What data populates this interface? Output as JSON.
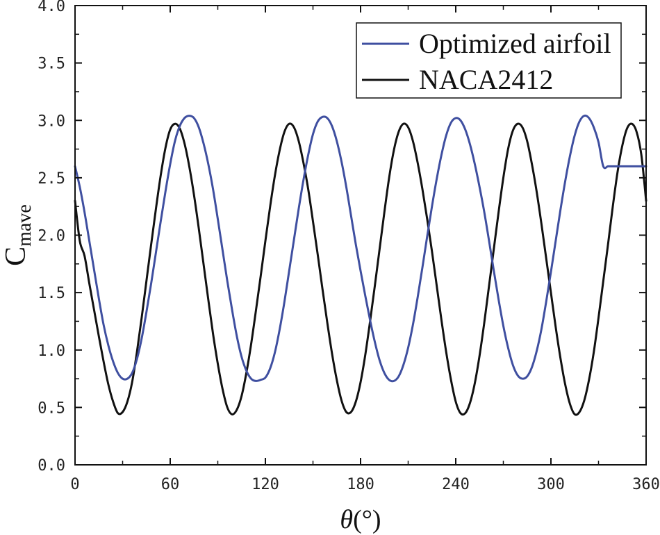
{
  "chart_data": {
    "type": "line",
    "title": "",
    "xlabel_symbol": "θ",
    "xlabel_unit": "(°)",
    "ylabel_main": "C",
    "ylabel_sub": "mave",
    "xlim": [
      0,
      360
    ],
    "ylim": [
      0.0,
      4.0
    ],
    "xticks": [
      0,
      60,
      120,
      180,
      240,
      300,
      360
    ],
    "xtick_labels": [
      "0",
      "60",
      "120",
      "180",
      "240",
      "300",
      "360"
    ],
    "yticks": [
      0.0,
      0.5,
      1.0,
      1.5,
      2.0,
      2.5,
      3.0,
      3.5,
      4.0
    ],
    "ytick_labels": [
      "0.0",
      "0.5",
      "1.0",
      "1.5",
      "2.0",
      "2.5",
      "3.0",
      "3.5",
      "4.0"
    ],
    "grid": false,
    "legend_position": "top-right",
    "series": [
      {
        "name": "Optimized airfoil",
        "color": "#3f4fa0",
        "x": [
          0,
          3,
          6,
          9,
          12,
          15,
          18,
          21,
          24,
          27,
          30,
          33,
          36,
          39,
          42,
          45,
          48,
          51,
          54,
          57,
          60,
          63,
          66,
          69,
          72,
          75,
          78,
          81,
          84,
          87,
          90,
          93,
          96,
          99,
          102,
          105,
          108,
          111,
          114,
          117,
          120,
          123,
          126,
          129,
          132,
          135,
          138,
          141,
          144,
          147,
          150,
          153,
          156,
          159,
          162,
          165,
          168,
          171,
          174,
          177,
          180,
          183,
          186,
          189,
          192,
          195,
          198,
          201,
          204,
          207,
          210,
          213,
          216,
          219,
          222,
          225,
          228,
          231,
          234,
          237,
          240,
          243,
          246,
          249,
          252,
          255,
          258,
          261,
          264,
          267,
          270,
          273,
          276,
          279,
          282,
          285,
          288,
          291,
          294,
          297,
          300,
          303,
          306,
          309,
          312,
          315,
          318,
          321,
          324,
          327,
          330,
          333,
          336,
          339,
          342,
          345,
          348,
          351,
          354,
          357,
          360
        ],
        "values": [
          2.6,
          2.42,
          2.2,
          1.95,
          1.7,
          1.45,
          1.22,
          1.04,
          0.9,
          0.8,
          0.75,
          0.75,
          0.8,
          0.92,
          1.1,
          1.33,
          1.58,
          1.85,
          2.12,
          2.38,
          2.62,
          2.82,
          2.95,
          3.02,
          3.04,
          3.02,
          2.94,
          2.8,
          2.62,
          2.4,
          2.14,
          1.87,
          1.6,
          1.35,
          1.12,
          0.94,
          0.82,
          0.75,
          0.73,
          0.74,
          0.76,
          0.84,
          0.98,
          1.18,
          1.42,
          1.69,
          1.96,
          2.23,
          2.48,
          2.7,
          2.88,
          2.99,
          3.03,
          3.02,
          2.95,
          2.82,
          2.64,
          2.42,
          2.17,
          1.92,
          1.69,
          1.47,
          1.26,
          1.07,
          0.91,
          0.8,
          0.74,
          0.73,
          0.77,
          0.87,
          1.02,
          1.22,
          1.46,
          1.72,
          1.99,
          2.25,
          2.49,
          2.7,
          2.87,
          2.98,
          3.02,
          3.0,
          2.92,
          2.79,
          2.62,
          2.42,
          2.2,
          1.95,
          1.69,
          1.44,
          1.21,
          1.02,
          0.87,
          0.78,
          0.75,
          0.77,
          0.85,
          0.99,
          1.18,
          1.42,
          1.68,
          1.95,
          2.22,
          2.47,
          2.69,
          2.87,
          2.99,
          3.04,
          3.02,
          2.94,
          2.81,
          2.6,
          2.6,
          2.6,
          2.6,
          2.6,
          2.6,
          2.6,
          2.6,
          2.6,
          2.6
        ]
      },
      {
        "name": "NACA2412",
        "color": "#111111",
        "x": [
          0,
          3,
          6,
          9,
          12,
          15,
          18,
          21,
          24,
          27,
          30,
          33,
          36,
          39,
          42,
          45,
          48,
          51,
          54,
          57,
          60,
          63,
          66,
          69,
          72,
          75,
          78,
          81,
          84,
          87,
          90,
          93,
          96,
          99,
          102,
          105,
          108,
          111,
          114,
          117,
          120,
          123,
          126,
          129,
          132,
          135,
          138,
          141,
          144,
          147,
          150,
          153,
          156,
          159,
          162,
          165,
          168,
          171,
          174,
          177,
          180,
          183,
          186,
          189,
          192,
          195,
          198,
          201,
          204,
          207,
          210,
          213,
          216,
          219,
          222,
          225,
          228,
          231,
          234,
          237,
          240,
          243,
          246,
          249,
          252,
          255,
          258,
          261,
          264,
          267,
          270,
          273,
          276,
          279,
          282,
          285,
          288,
          291,
          294,
          297,
          300,
          303,
          306,
          309,
          312,
          315,
          318,
          321,
          324,
          327,
          330,
          333,
          336,
          339,
          342,
          345,
          348,
          351,
          354,
          357,
          360
        ],
        "values": [
          2.3,
          1.95,
          1.82,
          1.58,
          1.35,
          1.12,
          0.9,
          0.7,
          0.55,
          0.45,
          0.46,
          0.55,
          0.72,
          0.98,
          1.28,
          1.6,
          1.92,
          2.23,
          2.52,
          2.76,
          2.92,
          2.97,
          2.93,
          2.8,
          2.6,
          2.35,
          2.06,
          1.75,
          1.44,
          1.14,
          0.88,
          0.66,
          0.5,
          0.44,
          0.48,
          0.6,
          0.8,
          1.05,
          1.34,
          1.64,
          1.95,
          2.25,
          2.52,
          2.74,
          2.9,
          2.97,
          2.94,
          2.82,
          2.63,
          2.4,
          2.12,
          1.83,
          1.53,
          1.24,
          0.97,
          0.74,
          0.56,
          0.46,
          0.46,
          0.55,
          0.72,
          0.96,
          1.25,
          1.56,
          1.88,
          2.2,
          2.5,
          2.74,
          2.9,
          2.97,
          2.94,
          2.82,
          2.63,
          2.4,
          2.14,
          1.86,
          1.56,
          1.26,
          0.98,
          0.74,
          0.55,
          0.45,
          0.45,
          0.54,
          0.71,
          0.95,
          1.24,
          1.56,
          1.88,
          2.2,
          2.5,
          2.75,
          2.91,
          2.97,
          2.94,
          2.82,
          2.62,
          2.38,
          2.1,
          1.8,
          1.5,
          1.2,
          0.93,
          0.7,
          0.53,
          0.44,
          0.46,
          0.56,
          0.74,
          0.98,
          1.28,
          1.6,
          1.92,
          2.25,
          2.55,
          2.78,
          2.93,
          2.97,
          2.9,
          2.7,
          2.3
        ]
      }
    ]
  }
}
